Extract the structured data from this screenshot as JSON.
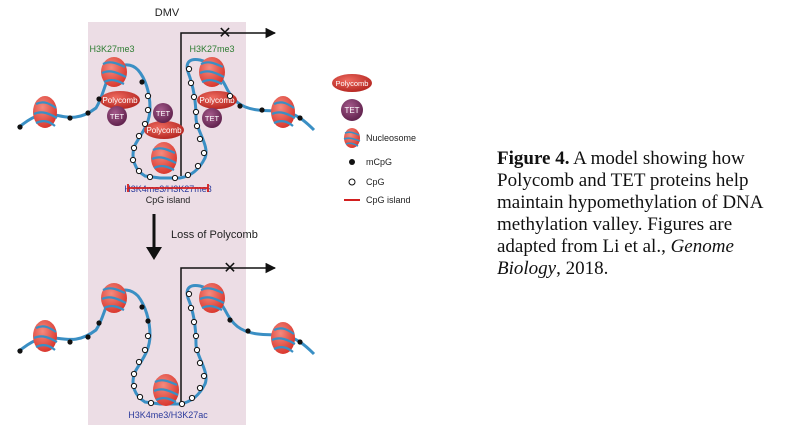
{
  "diagram": {
    "region_label": "DMV",
    "top_panel": {
      "mark_left": "H3K27me3",
      "mark_right": "H3K27me3",
      "bottom_mark": "H3K4me3/H3K27me3",
      "cpg_island_label": "CpG island",
      "polycomb_labels": [
        "Polycomb",
        "Polycomb",
        "Polycomb"
      ],
      "tet_labels": [
        "TET",
        "TET",
        "TET"
      ]
    },
    "transition_label": "Loss of Polycomb",
    "bottom_panel": {
      "bottom_mark": "H3K4me3/H3K27ac"
    },
    "legend": {
      "polycomb": "Polycomb",
      "tet": "TET",
      "nucleosome": "Nucleosome",
      "mcpg": "mCpG",
      "cpg": "CpG",
      "cpg_island": "CpG island"
    },
    "colors": {
      "dmv_shade": "#ecdde5",
      "dna": "#3a8fc4",
      "nucleosome": "#e34a3c",
      "polycomb": "#d0322d",
      "tet": "#7a2f62",
      "mark_green": "#2e7d32",
      "mark_blue": "#2b3a9c",
      "island_red": "#d21f1f"
    }
  },
  "caption": {
    "label": "Figure 4.",
    "text": " A model showing how Polycomb and TET proteins help maintain hypomethylation of DNA methylation valley. Figures are adapted from Li et al., ",
    "journal": "Genome Biology",
    "year": ", 2018."
  }
}
